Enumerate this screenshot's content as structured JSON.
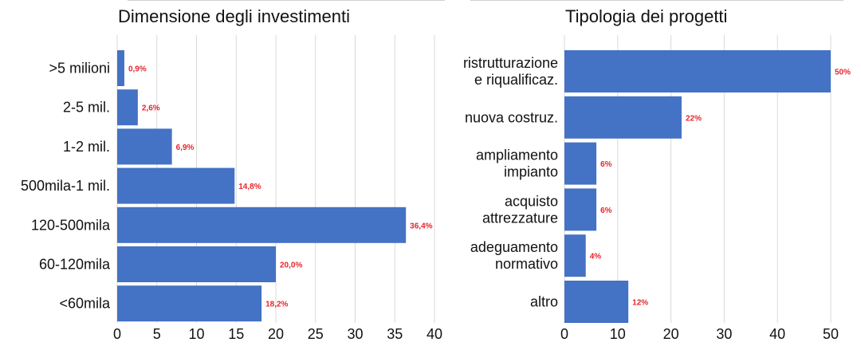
{
  "chart_data": [
    {
      "type": "bar",
      "orientation": "horizontal",
      "title": "Dimensione degli investimenti",
      "categories": [
        ">5 milioni",
        "2-5 mil.",
        "1-2 mil.",
        "500mila-1 mil.",
        "120-500mila",
        "60-120mila",
        "<60mila"
      ],
      "values": [
        0.9,
        2.6,
        6.9,
        14.8,
        36.4,
        20.0,
        18.2
      ],
      "data_labels": [
        "0,9%",
        "2,6%",
        "6,9%",
        "14,8%",
        "36,4%",
        "20,0%",
        "18,2%"
      ],
      "xlim": [
        0,
        40
      ],
      "xticks": [
        0,
        5,
        10,
        15,
        20,
        25,
        30,
        35,
        40
      ],
      "xlabel": "",
      "ylabel": "",
      "grid": true,
      "bar_color": "#4472C4",
      "label_color": "#E8242C"
    },
    {
      "type": "bar",
      "orientation": "horizontal",
      "title": "Tipologia dei progetti",
      "categories": [
        [
          "ristrutturazione",
          "e riqualificaz."
        ],
        [
          "nuova costruz."
        ],
        [
          "ampliamento",
          "impianto"
        ],
        [
          "acquisto",
          "attrezzature"
        ],
        [
          "adeguamento",
          "normativo"
        ],
        [
          "altro"
        ]
      ],
      "values": [
        50,
        22,
        6,
        6,
        4,
        12
      ],
      "data_labels": [
        "50%",
        "22%",
        "6%",
        "6%",
        "4%",
        "12%"
      ],
      "xlim": [
        0,
        50
      ],
      "xticks": [
        0,
        10,
        20,
        30,
        40,
        50
      ],
      "xlabel": "",
      "ylabel": "",
      "grid": true,
      "bar_color": "#4472C4",
      "label_color": "#E8242C"
    }
  ]
}
